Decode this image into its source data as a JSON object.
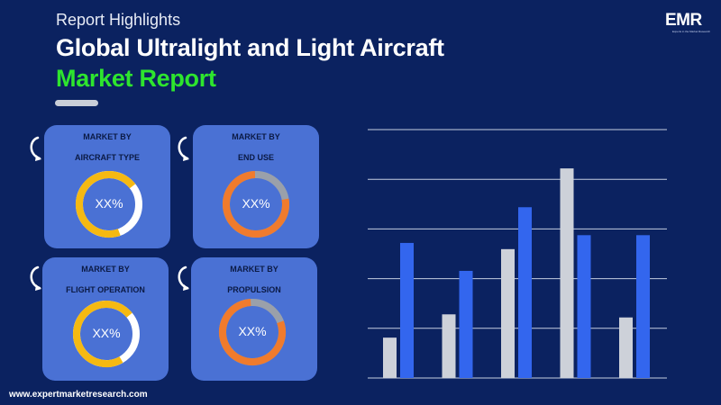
{
  "header": {
    "highlights": "Report Highlights",
    "title_line1": "Global Ultralight and Light Aircraft",
    "title_line2": "Market Report"
  },
  "logo": {
    "text": "EMR",
    "tagline": "Experts in the Market Research"
  },
  "colors": {
    "background": "#0b2260",
    "card": "#4a71d4",
    "accent_green": "#2ee52e",
    "donut_yellow": "#f5b912",
    "donut_orange": "#f07b2d",
    "donut_track_white": "#ffffff",
    "donut_track_grey": "#9aa0aa",
    "bar_grey": "#cdd1d9",
    "bar_blue": "#3366ee"
  },
  "cards": [
    {
      "line1": "MARKET BY",
      "line2": "AIRCRAFT TYPE",
      "value": "XX%"
    },
    {
      "line1": "MARKET BY",
      "line2": "END USE",
      "value": "XX%"
    },
    {
      "line1": "MARKET BY",
      "line2": "FLIGHT OPERATION",
      "value": "XX%"
    },
    {
      "line1": "MARKET BY",
      "line2": "PROPULSION",
      "value": "XX%"
    }
  ],
  "footer": {
    "url": "www.expertmarketresearch.com"
  },
  "chart_data": {
    "type": "bar",
    "categories": [
      "",
      "",
      "",
      "",
      ""
    ],
    "series": [
      {
        "values": [
          1.3,
          2.05,
          4.15,
          6.75,
          1.95
        ]
      },
      {
        "values": [
          4.35,
          3.45,
          5.5,
          4.6,
          4.6
        ]
      }
    ],
    "ylim": [
      0,
      8
    ],
    "grid": true,
    "legend": "none"
  }
}
